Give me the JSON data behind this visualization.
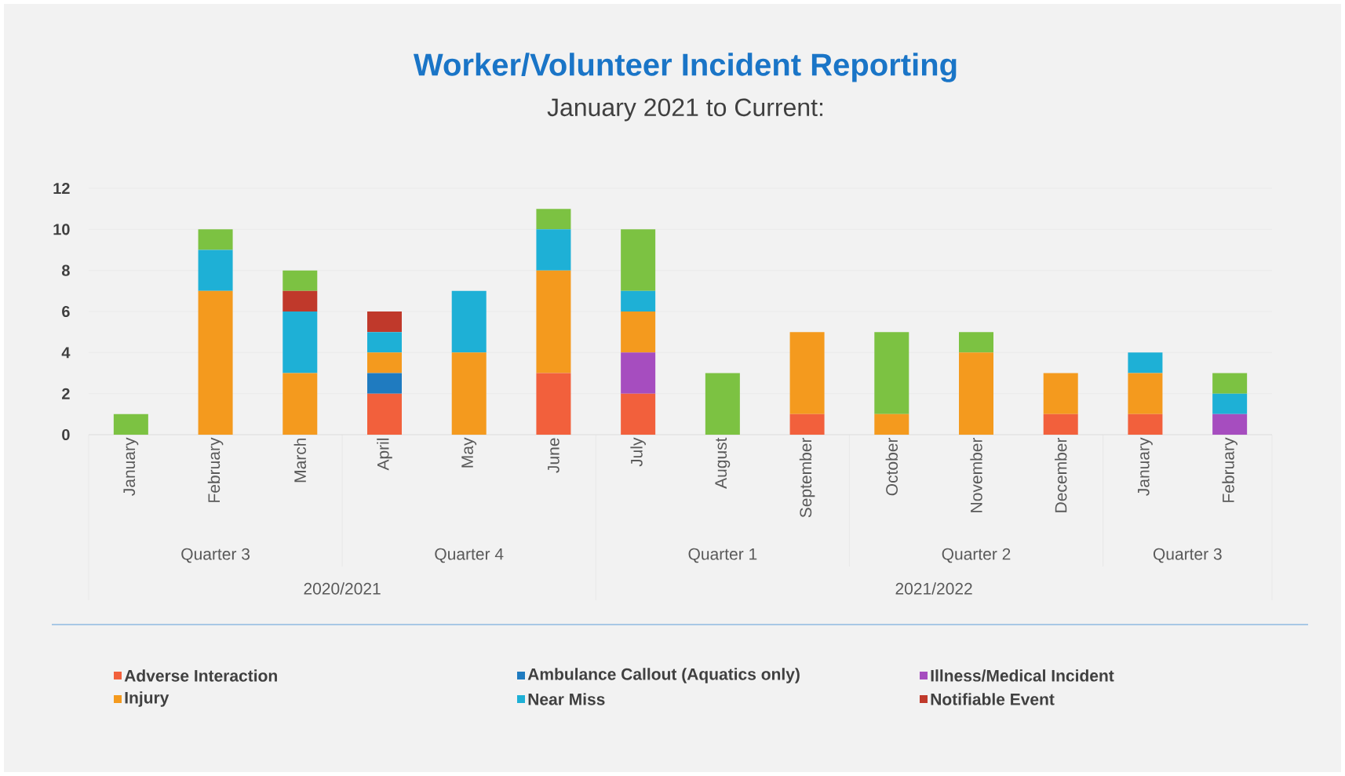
{
  "chart_data": {
    "type": "bar",
    "stacked": true,
    "title": "Worker/Volunteer Incident Reporting",
    "subtitle": "January 2021 to Current:",
    "categories": [
      "January",
      "February",
      "March",
      "April",
      "May",
      "June",
      "July",
      "August",
      "September",
      "October",
      "November",
      "December",
      "January",
      "February"
    ],
    "series": [
      {
        "name": "Adverse Interaction",
        "color": "#f2603c",
        "values": [
          0,
          0,
          0,
          2,
          0,
          3,
          2,
          0,
          1,
          0,
          0,
          1,
          1,
          0
        ]
      },
      {
        "name": "Ambulance Callout (Aquatics only)",
        "color": "#1f7bc0",
        "values": [
          0,
          0,
          0,
          1,
          0,
          0,
          0,
          0,
          0,
          0,
          0,
          0,
          0,
          0
        ]
      },
      {
        "name": "Illness/Medical Incident",
        "color": "#a64dbf",
        "values": [
          0,
          0,
          0,
          0,
          0,
          0,
          2,
          0,
          0,
          0,
          0,
          0,
          0,
          1
        ]
      },
      {
        "name": "Injury",
        "color": "#f49a1e",
        "values": [
          0,
          7,
          3,
          1,
          4,
          5,
          2,
          0,
          4,
          1,
          4,
          2,
          2,
          0
        ]
      },
      {
        "name": "Near Miss",
        "color": "#1eb0d6",
        "values": [
          0,
          2,
          3,
          1,
          3,
          2,
          1,
          0,
          0,
          0,
          0,
          0,
          1,
          1
        ]
      },
      {
        "name": "Notifiable Event",
        "color": "#c0392b",
        "values": [
          0,
          0,
          1,
          1,
          0,
          0,
          0,
          0,
          0,
          0,
          0,
          0,
          0,
          0
        ]
      },
      {
        "color": "#7cc242",
        "values": [
          1,
          1,
          1,
          0,
          0,
          1,
          3,
          3,
          0,
          4,
          1,
          0,
          0,
          1
        ]
      }
    ],
    "ylim": [
      0,
      12
    ],
    "yticks": [
      0,
      2,
      4,
      6,
      8,
      10,
      12
    ],
    "grid": "y",
    "legend": "bottom",
    "annotations": [
      "Quarter 3",
      "Quarter 4",
      "Quarter 1",
      "Quarter 2",
      "Quarter 3",
      "2020/2021",
      "2021/2022"
    ]
  }
}
